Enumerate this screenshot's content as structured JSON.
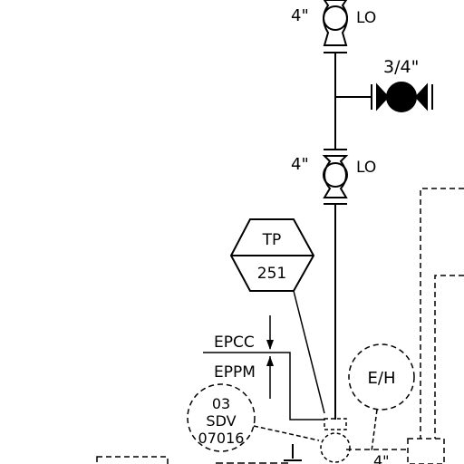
{
  "colors": {
    "line": "#000000",
    "background": "#ffffff"
  },
  "valves": [
    {
      "size": "4\"",
      "position_tag": "LO",
      "type": "ball-valve"
    },
    {
      "size": "3/4\"",
      "type": "ball-valve-closed"
    },
    {
      "size": "4\"",
      "position_tag": "LO",
      "type": "ball-valve"
    }
  ],
  "test_point": {
    "tag": "TP",
    "number": "251"
  },
  "scope_labels": {
    "upper": "EPCC",
    "lower": "EPPM"
  },
  "shutdown_valve": {
    "line1": "03",
    "line2": "SDV",
    "line3": "07016"
  },
  "actuator": {
    "label": "E/H"
  },
  "bottom": {
    "size": "4\""
  }
}
